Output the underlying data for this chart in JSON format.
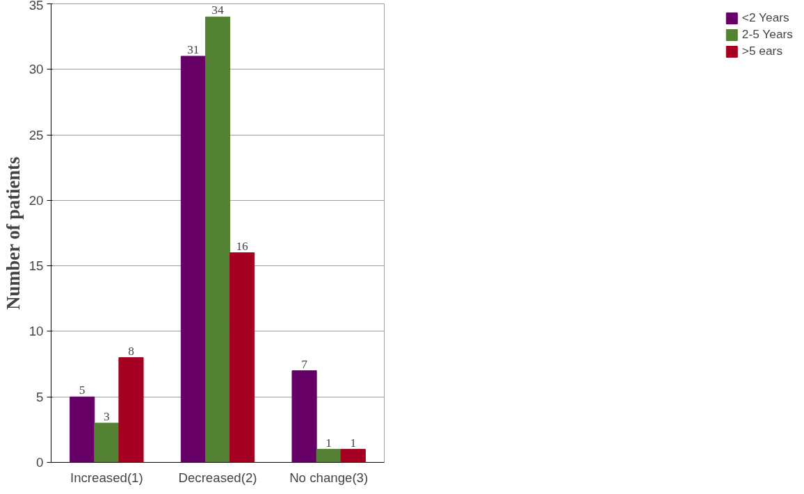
{
  "chart_data": {
    "type": "bar",
    "ylabel": "Number of patients",
    "categories": [
      "Increased(1)",
      "Decreased(2)",
      "No change(3)"
    ],
    "series": [
      {
        "name": "<2 Years",
        "color": "#660066",
        "values": [
          5,
          31,
          7
        ]
      },
      {
        "name": "2-5 Years",
        "color": "#548235",
        "values": [
          3,
          34,
          1
        ]
      },
      {
        "name": ">5 ears",
        "color": "#a50021",
        "values": [
          8,
          16,
          1
        ]
      }
    ],
    "ylim": [
      0,
      35
    ],
    "yticks": [
      0,
      5,
      10,
      15,
      20,
      25,
      30,
      35
    ],
    "grid": "y",
    "legend": "right",
    "data_labels": true
  }
}
